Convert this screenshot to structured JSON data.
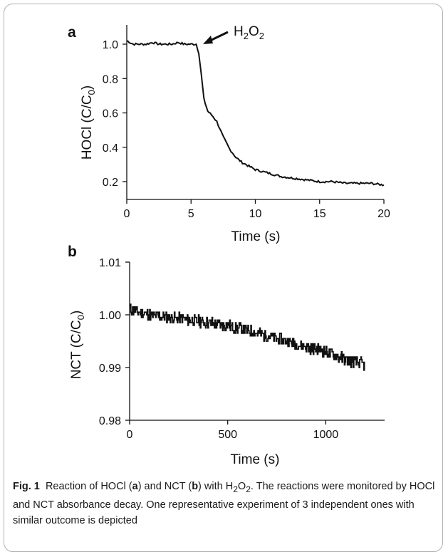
{
  "chart_data": [
    {
      "type": "line",
      "panel_label": "a",
      "xlabel": "Time (s)",
      "ylabel": "HOCl (C/C0)",
      "xlim": [
        0,
        20
      ],
      "ylim": [
        0.1,
        1.1
      ],
      "xticks": [
        "0",
        "5",
        "10",
        "15",
        "20"
      ],
      "yticks": [
        "0.2",
        "0.4",
        "0.6",
        "0.8",
        "1.0"
      ],
      "annotation": "H2O2",
      "annotation_x": 5.5,
      "x": [
        0,
        0.5,
        1,
        1.5,
        2,
        2.5,
        3,
        3.5,
        4,
        4.5,
        5,
        5.4,
        5.6,
        5.8,
        6.0,
        6.3,
        6.7,
        7.0,
        7.5,
        8.0,
        8.5,
        9.0,
        9.5,
        10,
        11,
        12,
        13,
        14,
        15,
        16,
        17,
        18,
        19,
        20
      ],
      "y": [
        1.02,
        1.0,
        1.0,
        1.0,
        1.01,
        1.0,
        1.0,
        1.0,
        1.01,
        1.0,
        1.0,
        1.0,
        0.95,
        0.82,
        0.68,
        0.61,
        0.58,
        0.55,
        0.46,
        0.39,
        0.34,
        0.31,
        0.29,
        0.27,
        0.25,
        0.23,
        0.22,
        0.21,
        0.2,
        0.2,
        0.19,
        0.19,
        0.19,
        0.18
      ]
    },
    {
      "type": "line",
      "panel_label": "b",
      "xlabel": "Time (s)",
      "ylabel": "NCT (C/C0)",
      "xlim": [
        0,
        1300
      ],
      "ylim": [
        0.98,
        1.01
      ],
      "xticks": [
        "0",
        "500",
        "1000"
      ],
      "yticks": [
        "0.98",
        "0.99",
        "1.00",
        "1.01"
      ],
      "x": [
        0,
        100,
        200,
        300,
        400,
        500,
        600,
        700,
        800,
        900,
        1000,
        1100,
        1200
      ],
      "y": [
        1.001,
        1.0,
        0.9995,
        0.999,
        0.9985,
        0.998,
        0.997,
        0.996,
        0.995,
        0.994,
        0.993,
        0.9915,
        0.9905
      ]
    }
  ],
  "caption": {
    "figure_label": "Fig. 1",
    "text_1": "Reaction of HOCl (",
    "bold_a": "a",
    "text_2": ") and NCT (",
    "bold_b": "b",
    "text_3": ") with H",
    "sub_2a": "2",
    "text_4": "O",
    "sub_2b": "2",
    "text_5": ". The reactions were monitored by HOCl and NCT absorbance decay. One representative experiment of 3 independent ones with similar outcome is depicted"
  }
}
